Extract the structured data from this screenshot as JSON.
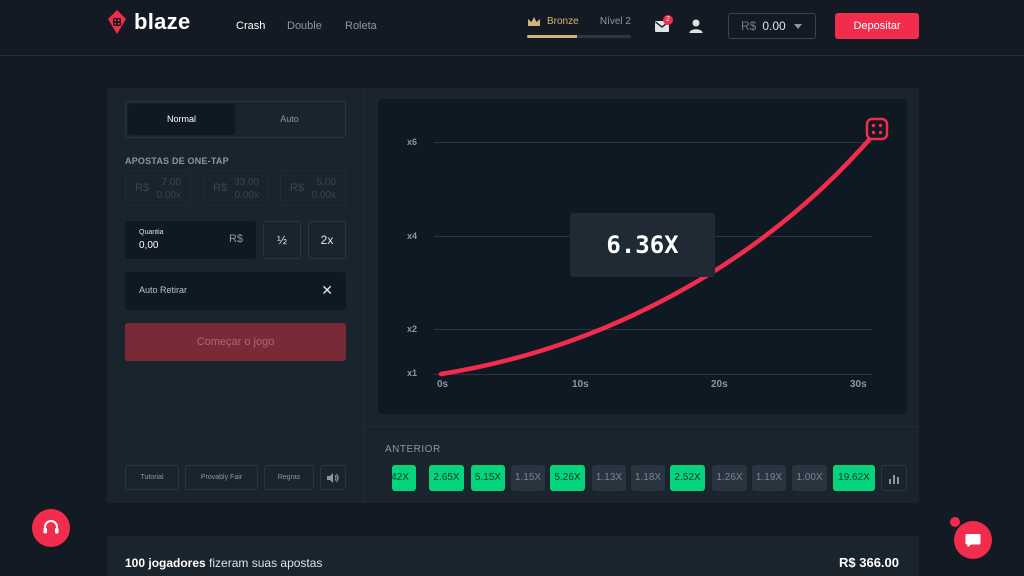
{
  "brand": {
    "name": "blaze",
    "accent": "#f12c4c",
    "green": "#04d47c"
  },
  "nav": [
    "Crash",
    "Double",
    "Roleta"
  ],
  "rank": {
    "name": "Bronze",
    "level": "Nível 2",
    "progress": 0.48
  },
  "notifications": {
    "count": "2"
  },
  "balance": {
    "currency": "R$",
    "amount": "0.00"
  },
  "deposit_label": "Depositar",
  "bet_panel": {
    "tabs": [
      "Normal",
      "Auto"
    ],
    "one_tap_title": "APOSTAS DE ONE-TAP",
    "one_tap": [
      {
        "currency": "R$",
        "amount": "7.00",
        "mult": "0.00x"
      },
      {
        "currency": "R$",
        "amount": "33.00",
        "mult": "0.00x"
      },
      {
        "currency": "R$",
        "amount": "5.00",
        "mult": "0.00x"
      }
    ],
    "amount_label": "Quantia",
    "amount_value": "0,00",
    "amount_currency": "R$",
    "half_label": "½",
    "double_label": "2x",
    "auto_retire_label": "Auto Retirar",
    "close_glyph": "✕",
    "start_label": "Começar o jogo",
    "footer_buttons": [
      "Tutorial",
      "Provably Fair",
      "Regras"
    ]
  },
  "game": {
    "multiplier": "6.36X",
    "y_ticks": [
      "x6",
      "x4",
      "x2",
      "x1"
    ],
    "x_ticks": [
      "0s",
      "10s",
      "20s",
      "30s"
    ]
  },
  "history": {
    "title": "ANTERIOR",
    "items": [
      {
        "label": "42X",
        "color": "green"
      },
      {
        "label": "2.65X",
        "color": "green"
      },
      {
        "label": "5.15X",
        "color": "green"
      },
      {
        "label": "1.15X",
        "color": "gray"
      },
      {
        "label": "5.26X",
        "color": "green"
      },
      {
        "label": "1.13X",
        "color": "gray"
      },
      {
        "label": "1.18X",
        "color": "gray"
      },
      {
        "label": "2.52X",
        "color": "green"
      },
      {
        "label": "1.26X",
        "color": "gray"
      },
      {
        "label": "1.19X",
        "color": "gray"
      },
      {
        "label": "1.00X",
        "color": "gray"
      },
      {
        "label": "19.62X",
        "color": "green"
      }
    ]
  },
  "players": {
    "count_label": "100 jogadores",
    "suffix": "fizeram suas apostas",
    "total": "R$ 366.00"
  }
}
